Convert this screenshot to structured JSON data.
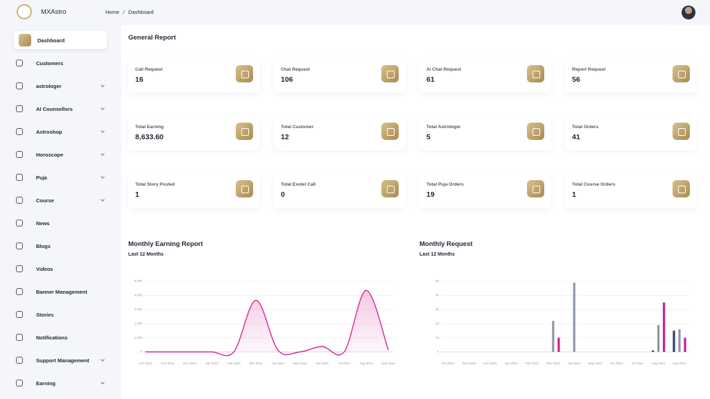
{
  "brand": "MXAstro",
  "breadcrumb": [
    "Home",
    "Dashboard"
  ],
  "sidebar": [
    {
      "label": "Dashboard",
      "active": true
    },
    {
      "label": "Customers"
    },
    {
      "label": "astrologer",
      "submenu": true
    },
    {
      "label": "AI Counsellors",
      "submenu": true
    },
    {
      "label": "Astroshop",
      "submenu": true
    },
    {
      "label": "Horoscope",
      "submenu": true
    },
    {
      "label": "Puja",
      "submenu": true
    },
    {
      "label": "Course",
      "submenu": true
    },
    {
      "label": "News"
    },
    {
      "label": "Blogs"
    },
    {
      "label": "Videos"
    },
    {
      "label": "Banner Management"
    },
    {
      "label": "Stories"
    },
    {
      "label": "Notifications"
    },
    {
      "label": "Support Management",
      "submenu": true
    },
    {
      "label": "Earning",
      "submenu": true
    }
  ],
  "report": {
    "title": "General Report",
    "cards": [
      {
        "label": "Call Request",
        "value": "16"
      },
      {
        "label": "Chat Request",
        "value": "106"
      },
      {
        "label": "Ai Chat Request",
        "value": "61"
      },
      {
        "label": "Report Request",
        "value": "56"
      },
      {
        "label": "Total Earning",
        "value": "8,633.60"
      },
      {
        "label": "Total Customer",
        "value": "12"
      },
      {
        "label": "Total Astrologer",
        "value": "5"
      },
      {
        "label": "Total Orders",
        "value": "41"
      },
      {
        "label": "Total Story Posted",
        "value": "1"
      },
      {
        "label": "Total Exotel Call",
        "value": "0"
      },
      {
        "label": "Total Puja Orders",
        "value": "19"
      },
      {
        "label": "Total Course Orders",
        "value": "1"
      }
    ]
  },
  "charts": [
    {
      "type": "line",
      "title": "Monthly Earning Report",
      "subtitle": "Last 12 Months",
      "categories": [
        "Oct 2023",
        "Nov 2023",
        "Dec 2023",
        "Jan 2024",
        "Feb 2024",
        "Mar 2024",
        "Apr 2024",
        "May 2024",
        "Jun 2024",
        "Jul 2024",
        "Aug 2024",
        "Sep 2024"
      ],
      "series": [
        {
          "color": "#d4259b",
          "values": [
            0,
            0,
            0,
            0,
            0,
            3650,
            120,
            0,
            380,
            0,
            4350,
            130
          ]
        }
      ],
      "ylim": [
        0,
        5000
      ],
      "yticks": [
        0,
        {
          "value": 1000,
          "label": "1,000"
        },
        {
          "value": 2000,
          "label": "2,000"
        },
        {
          "value": 3000,
          "label": "3,000"
        },
        {
          "value": 4000,
          "label": "4,000"
        },
        {
          "value": 5000,
          "label": "5,000"
        }
      ],
      "grid": true
    },
    {
      "type": "bar",
      "title": "Monthly Request",
      "subtitle": "Last 12 Months",
      "categories": [
        "Oct 2023",
        "Nov 2023",
        "Dec 2023",
        "Jan 2024",
        "Feb 2024",
        "Mar 2024",
        "Apr 2024",
        "May 2024",
        "Jun 2024",
        "Jul 2024",
        "Aug 2024",
        "Sep 2024"
      ],
      "series": [
        {
          "color": "#34405e",
          "values": [
            0,
            0,
            0,
            0,
            0,
            0,
            0,
            0,
            0,
            0,
            1,
            15
          ]
        },
        {
          "color": "#8e97a6",
          "values": [
            0,
            0,
            0,
            0,
            0,
            22,
            49,
            0,
            0,
            0,
            19,
            16
          ]
        },
        {
          "color": "#c81f95",
          "values": [
            0,
            0,
            0,
            0,
            0,
            10,
            0,
            0,
            0,
            0,
            35,
            10
          ]
        }
      ],
      "ylim": [
        0,
        50
      ],
      "yticks": [
        0,
        10,
        20,
        30,
        40,
        50
      ],
      "grid": true
    }
  ]
}
